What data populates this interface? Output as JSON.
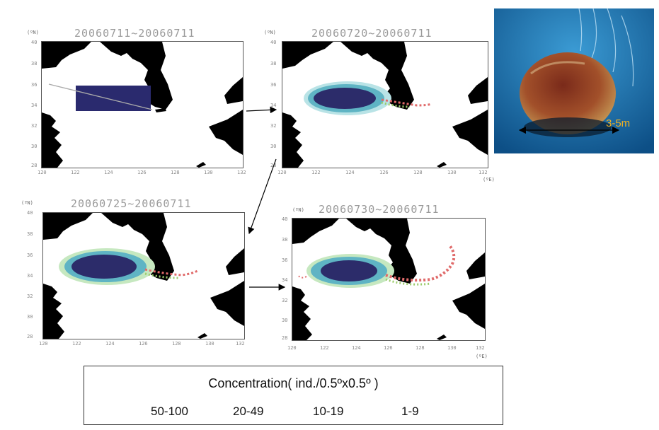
{
  "panels": [
    {
      "title": "20060711~20060711",
      "lat_unit": "(ºN)",
      "lon_unit": ""
    },
    {
      "title": "20060720~20060711",
      "lat_unit": "(ºN)",
      "lon_unit": "(ºE)"
    },
    {
      "title": "20060725~20060711",
      "lat_unit": "(ºN)",
      "lon_unit": ""
    },
    {
      "title": "20060730~20060711",
      "lat_unit": "(ºN)",
      "lon_unit": "(ºE)"
    }
  ],
  "lat_ticks": [
    "40",
    "38",
    "36",
    "34",
    "32",
    "30",
    "28"
  ],
  "lon_ticks": [
    "120",
    "122",
    "124",
    "126",
    "128",
    "130",
    "132"
  ],
  "legend": {
    "title": "Concentration( ind./0.5ºx0.5º )",
    "classes": [
      "50-100",
      "20-49",
      "10-19",
      "1-9"
    ]
  },
  "photo": {
    "size_label": "3-5m"
  },
  "colors": {
    "release_box": "#2a2a6e",
    "conc_50_100": "#2c2c6a",
    "conc_20_49": "#5fb4c4",
    "conc_10_19": "#9ccc6c",
    "conc_1_9": "#e06a6a",
    "land": "#000000",
    "sea_photo": "#1a6fa8",
    "size_label": "#f0b020"
  }
}
